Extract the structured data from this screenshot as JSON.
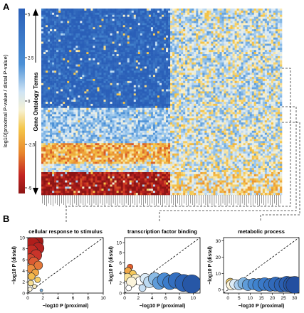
{
  "panel_a_label": "A",
  "panel_b_label": "B",
  "colorbar": {
    "label": "log10(proximal P-value / distal P-value)",
    "ticks": [
      "5",
      "2.5",
      "0",
      "-2.5",
      "-5"
    ],
    "colors": [
      "#2a5fb8",
      "#4b90d6",
      "#cfe4f5",
      "#f6f1d2",
      "#f4c64a",
      "#e8862c",
      "#c42522",
      "#8c1414"
    ]
  },
  "row_axis_label": "Gene Ontology Terms",
  "chart_data": [
    {
      "type": "heatmap",
      "title": "",
      "ylabel": "log10(proximal P-value / distal P-value)",
      "zlim": [
        -5,
        5
      ],
      "n_rows": 90,
      "n_cols": 112,
      "row_blocks": [
        {
          "rows": [
            0,
            47
          ],
          "left_value": 4.5,
          "right_value": 0.5,
          "desc": "blue block"
        },
        {
          "rows": [
            48,
            64
          ],
          "left_value": 1.2,
          "right_value": 0.4,
          "desc": "light blue / white"
        },
        {
          "rows": [
            65,
            74
          ],
          "left_value": -1.8,
          "right_value": 0.2,
          "desc": "yellow band"
        },
        {
          "rows": [
            75,
            78
          ],
          "left_value": 0.4,
          "right_value": 0.3,
          "desc": "pale band"
        },
        {
          "rows": [
            79,
            89
          ],
          "left_value": -4.5,
          "right_value": -0.5,
          "desc": "red band"
        }
      ],
      "column_split": 60
    },
    {
      "type": "scatter",
      "title": "cellular response to stimulus",
      "xlabel": "−log10 P (proximal)",
      "ylabel": "−log10 P (distal)",
      "xlim": [
        0,
        10
      ],
      "ylim": [
        0,
        10
      ],
      "xticks": [
        "0",
        "2",
        "4",
        "6",
        "8",
        "10"
      ],
      "yticks": [
        "0",
        "2",
        "4",
        "6",
        "8",
        "10"
      ],
      "points": [
        {
          "x": 1.2,
          "y": 9.3,
          "s": 9,
          "c": "#a11a17"
        },
        {
          "x": 0.6,
          "y": 8.6,
          "s": 11,
          "c": "#b01e1b"
        },
        {
          "x": 1.4,
          "y": 8.1,
          "s": 8,
          "c": "#b52220"
        },
        {
          "x": 0.5,
          "y": 7.5,
          "s": 9,
          "c": "#c12b23"
        },
        {
          "x": 1.1,
          "y": 6.8,
          "s": 8,
          "c": "#c9342a"
        },
        {
          "x": 0.3,
          "y": 6.2,
          "s": 7,
          "c": "#d2462e"
        },
        {
          "x": 0.8,
          "y": 5.6,
          "s": 7,
          "c": "#dc5a32"
        },
        {
          "x": 1.4,
          "y": 5.0,
          "s": 6,
          "c": "#e47739"
        },
        {
          "x": 0.4,
          "y": 4.4,
          "s": 6,
          "c": "#ea8a3c"
        },
        {
          "x": 1.0,
          "y": 3.7,
          "s": 5,
          "c": "#f0a645"
        },
        {
          "x": 0.5,
          "y": 3.0,
          "s": 5,
          "c": "#f3bb4d"
        },
        {
          "x": 1.3,
          "y": 2.4,
          "s": 4,
          "c": "#f5cf6b"
        },
        {
          "x": 0.4,
          "y": 1.8,
          "s": 4,
          "c": "#f7df95"
        },
        {
          "x": 0.9,
          "y": 1.2,
          "s": 3,
          "c": "#f9ebbd"
        },
        {
          "x": 0.3,
          "y": 0.7,
          "s": 3,
          "c": "#fbf4dc"
        },
        {
          "x": 1.8,
          "y": 0.5,
          "s": 2,
          "c": "#7fb3e0"
        }
      ]
    },
    {
      "type": "scatter",
      "title": "transcription factor binding",
      "xlabel": "−log10 P (proximal)",
      "ylabel": "−log10 P (distal)",
      "xlim": [
        0,
        11
      ],
      "ylim": [
        0,
        11
      ],
      "xticks": [
        "0",
        "2",
        "4",
        "6",
        "8",
        "10"
      ],
      "yticks": [
        "0",
        "2",
        "4",
        "6",
        "8",
        "10"
      ],
      "points": [
        {
          "x": 0.8,
          "y": 5.2,
          "s": 4,
          "c": "#e35f2f"
        },
        {
          "x": 0.5,
          "y": 4.4,
          "s": 5,
          "c": "#f0a645"
        },
        {
          "x": 1.2,
          "y": 3.8,
          "s": 5,
          "c": "#f5c85a"
        },
        {
          "x": 0.4,
          "y": 3.1,
          "s": 6,
          "c": "#f7df95"
        },
        {
          "x": 1.6,
          "y": 2.8,
          "s": 7,
          "c": "#faeec6"
        },
        {
          "x": 2.2,
          "y": 2.4,
          "s": 6,
          "c": "#ffffff"
        },
        {
          "x": 1.0,
          "y": 2.2,
          "s": 7,
          "c": "#fbf4dc"
        },
        {
          "x": 3.0,
          "y": 2.9,
          "s": 7,
          "c": "#dcecf8"
        },
        {
          "x": 3.6,
          "y": 2.2,
          "s": 8,
          "c": "#bcd9f1"
        },
        {
          "x": 4.4,
          "y": 2.8,
          "s": 9,
          "c": "#8bbbe5"
        },
        {
          "x": 5.0,
          "y": 2.0,
          "s": 9,
          "c": "#5f9cd9"
        },
        {
          "x": 5.8,
          "y": 2.6,
          "s": 10,
          "c": "#4a8bd3"
        },
        {
          "x": 6.6,
          "y": 2.1,
          "s": 10,
          "c": "#3b7cca"
        },
        {
          "x": 7.5,
          "y": 2.5,
          "s": 11,
          "c": "#346fc0"
        },
        {
          "x": 8.6,
          "y": 2.0,
          "s": 12,
          "c": "#2b62b5"
        },
        {
          "x": 9.8,
          "y": 1.8,
          "s": 13,
          "c": "#2757a6"
        },
        {
          "x": 0.6,
          "y": 1.0,
          "s": 4,
          "c": "#ffffff"
        },
        {
          "x": 2.6,
          "y": 1.0,
          "s": 5,
          "c": "#c6def3"
        }
      ]
    },
    {
      "type": "scatter",
      "title": "metabolic process",
      "xlabel": "−log10 P (proximal)",
      "ylabel": "−log10 P (distal)",
      "xlim": [
        -2,
        32
      ],
      "ylim": [
        -2,
        32
      ],
      "xticks": [
        "0",
        "5",
        "10",
        "15",
        "20",
        "25",
        "30"
      ],
      "yticks": [
        "0",
        "10",
        "20",
        "30"
      ],
      "points": [
        {
          "x": 1.0,
          "y": 4.5,
          "s": 6,
          "c": "#f5cf6b"
        },
        {
          "x": 1.5,
          "y": 3.0,
          "s": 7,
          "c": "#fbf4dc"
        },
        {
          "x": 3.0,
          "y": 3.5,
          "s": 7,
          "c": "#dcecf8"
        },
        {
          "x": 5.0,
          "y": 3.0,
          "s": 7,
          "c": "#a9cdee"
        },
        {
          "x": 7.0,
          "y": 4.0,
          "s": 8,
          "c": "#7fb3e0"
        },
        {
          "x": 9.0,
          "y": 3.0,
          "s": 8,
          "c": "#5f9cd9"
        },
        {
          "x": 11.5,
          "y": 3.5,
          "s": 8,
          "c": "#4a8bd3"
        },
        {
          "x": 14.0,
          "y": 3.0,
          "s": 9,
          "c": "#3f82ce"
        },
        {
          "x": 16.5,
          "y": 3.5,
          "s": 9,
          "c": "#3a79c8"
        },
        {
          "x": 19.0,
          "y": 3.0,
          "s": 9,
          "c": "#3672c2"
        },
        {
          "x": 21.5,
          "y": 3.5,
          "s": 10,
          "c": "#316abb"
        },
        {
          "x": 24.0,
          "y": 3.0,
          "s": 10,
          "c": "#2d64b6"
        },
        {
          "x": 26.5,
          "y": 3.5,
          "s": 11,
          "c": "#2a5eb0"
        },
        {
          "x": 28.5,
          "y": 3.2,
          "s": 11,
          "c": "#2557a8"
        },
        {
          "x": 30.0,
          "y": 3.0,
          "s": 12,
          "c": "#234fa0"
        }
      ]
    }
  ]
}
